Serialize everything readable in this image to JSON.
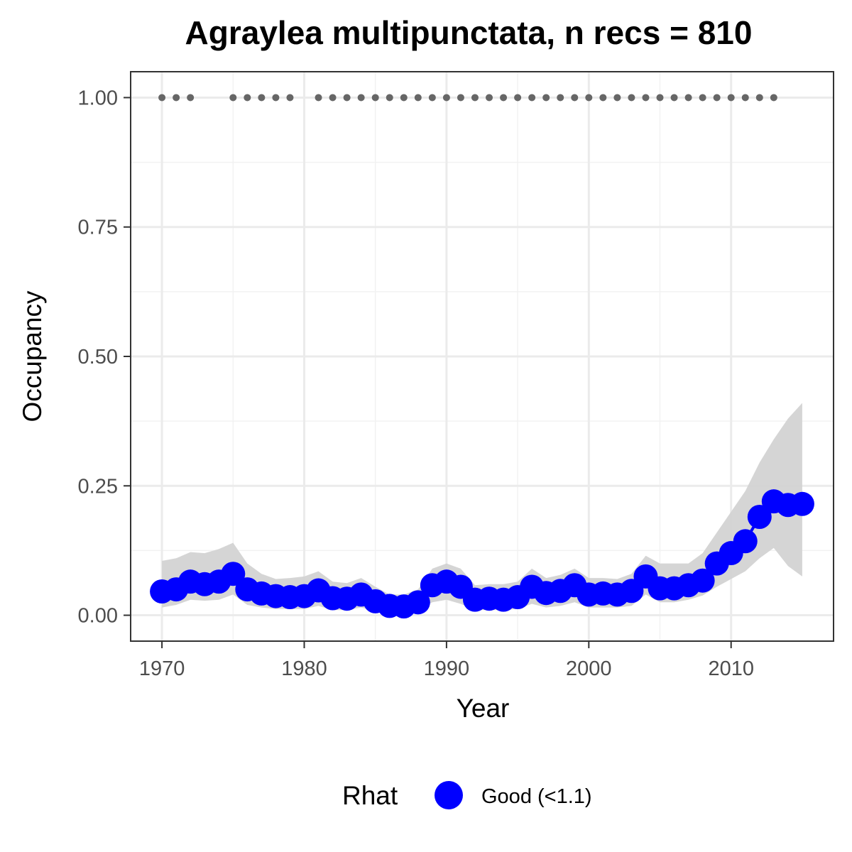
{
  "chart_data": {
    "type": "line",
    "title": "Agraylea multipunctata, n recs = 810",
    "xlabel": "Year",
    "ylabel": "Occupancy",
    "xlim": [
      1967.8,
      2017.2
    ],
    "ylim": [
      -0.05,
      1.05
    ],
    "x_ticks": [
      1970,
      1980,
      1990,
      2000,
      2010
    ],
    "x_tick_labels": [
      "1970",
      "1980",
      "1990",
      "2000",
      "2010"
    ],
    "y_ticks": [
      0,
      0.25,
      0.5,
      0.75,
      1.0
    ],
    "y_tick_labels": [
      "0.00",
      "0.25",
      "0.50",
      "0.75",
      "1.00"
    ],
    "grid": true,
    "legend": {
      "position": "bottom",
      "title": "Rhat",
      "entries": [
        {
          "label": "Good (<1.1)",
          "color": "#0000ff"
        }
      ]
    },
    "series": [
      {
        "name": "Good (<1.1)",
        "color": "#0000ff",
        "x": [
          1970,
          1971,
          1972,
          1973,
          1974,
          1975,
          1976,
          1977,
          1978,
          1979,
          1980,
          1981,
          1982,
          1983,
          1984,
          1985,
          1986,
          1987,
          1988,
          1989,
          1990,
          1991,
          1992,
          1993,
          1994,
          1995,
          1996,
          1997,
          1998,
          1999,
          2000,
          2001,
          2002,
          2003,
          2004,
          2005,
          2006,
          2007,
          2008,
          2009,
          2010,
          2011,
          2012,
          2013,
          2014,
          2015
        ],
        "y": [
          0.046,
          0.05,
          0.065,
          0.06,
          0.065,
          0.08,
          0.05,
          0.042,
          0.037,
          0.035,
          0.037,
          0.048,
          0.033,
          0.032,
          0.04,
          0.027,
          0.018,
          0.017,
          0.025,
          0.058,
          0.065,
          0.055,
          0.03,
          0.032,
          0.03,
          0.035,
          0.055,
          0.043,
          0.047,
          0.058,
          0.04,
          0.042,
          0.04,
          0.047,
          0.075,
          0.052,
          0.052,
          0.058,
          0.067,
          0.1,
          0.12,
          0.143,
          0.19,
          0.22,
          0.213,
          0.215
        ],
        "lower": [
          0.015,
          0.02,
          0.03,
          0.028,
          0.03,
          0.04,
          0.02,
          0.015,
          0.012,
          0.012,
          0.012,
          0.018,
          0.01,
          0.01,
          0.015,
          0.008,
          0.005,
          0.005,
          0.008,
          0.025,
          0.03,
          0.022,
          0.01,
          0.01,
          0.01,
          0.012,
          0.022,
          0.015,
          0.018,
          0.025,
          0.015,
          0.015,
          0.015,
          0.018,
          0.04,
          0.025,
          0.025,
          0.03,
          0.038,
          0.055,
          0.07,
          0.085,
          0.11,
          0.13,
          0.095,
          0.075
        ],
        "upper": [
          0.105,
          0.11,
          0.122,
          0.12,
          0.128,
          0.14,
          0.1,
          0.08,
          0.07,
          0.072,
          0.075,
          0.085,
          0.065,
          0.062,
          0.072,
          0.055,
          0.04,
          0.04,
          0.05,
          0.09,
          0.1,
          0.09,
          0.058,
          0.06,
          0.06,
          0.065,
          0.09,
          0.072,
          0.078,
          0.09,
          0.072,
          0.072,
          0.07,
          0.08,
          0.115,
          0.1,
          0.1,
          0.1,
          0.12,
          0.16,
          0.2,
          0.24,
          0.295,
          0.34,
          0.38,
          0.41
        ]
      }
    ],
    "records": {
      "y": 1.0,
      "color": "#666666",
      "years": [
        1970,
        1971,
        1972,
        1975,
        1976,
        1977,
        1978,
        1979,
        1981,
        1982,
        1983,
        1984,
        1985,
        1986,
        1987,
        1988,
        1989,
        1990,
        1991,
        1992,
        1993,
        1994,
        1995,
        1996,
        1997,
        1998,
        1999,
        2000,
        2001,
        2002,
        2003,
        2004,
        2005,
        2006,
        2007,
        2008,
        2009,
        2010,
        2011,
        2012,
        2013
      ]
    },
    "ribbon_color": "#d3d3d3"
  }
}
